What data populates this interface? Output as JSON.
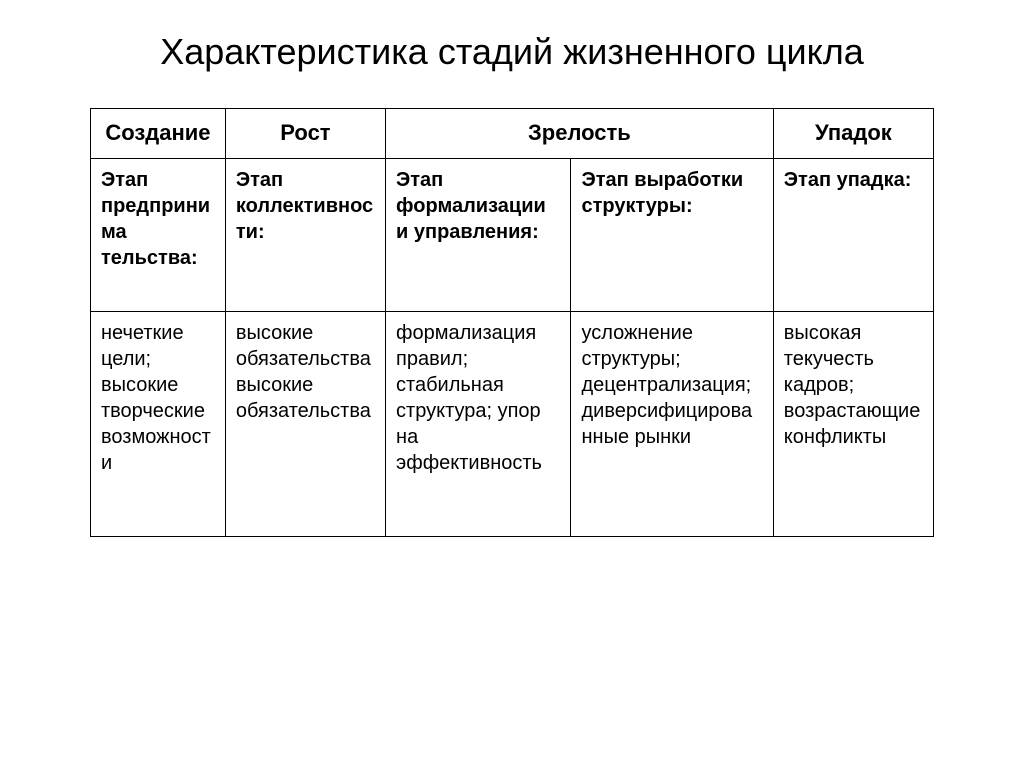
{
  "title": "Характеристика стадий жизненного цикла",
  "table": {
    "headers": {
      "h1": "Создание",
      "h2": "Рост",
      "h3": "Зрелость",
      "h4": "Упадок"
    },
    "stage_row": {
      "c1": "Этап предпринима тельства:",
      "c2": "Этап коллективности:",
      "c3": "Этап формализации и управления:",
      "c4": "Этап выработки структуры:",
      "c5": "Этап упадка:"
    },
    "detail_row": {
      "c1": "нечеткие цели; высокие творческие возможности",
      "c2": "высокие обязательства высокие обязательства",
      "c3": "формализация правил; стабильная структура; упор на эффективность",
      "c4": "усложнение структуры; децентрализация; диверсифицированные рынки",
      "c5": "высокая текучесть кадров; возрастающие конфликты"
    }
  }
}
